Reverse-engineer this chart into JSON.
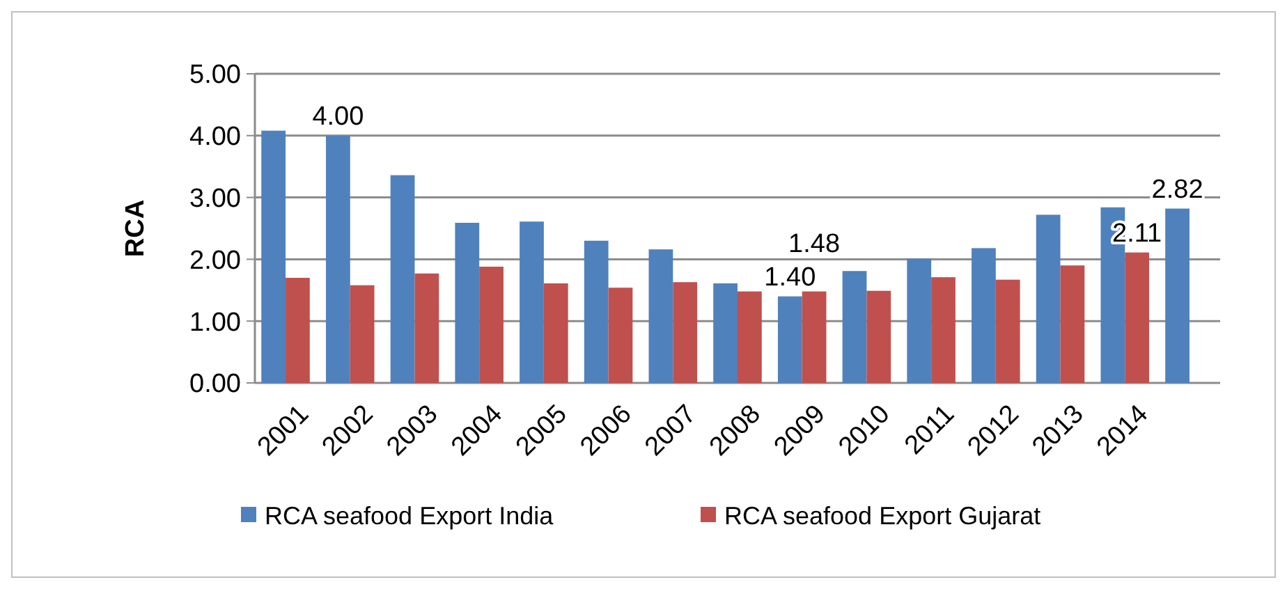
{
  "chart_data": {
    "type": "bar",
    "ylabel": "RCA",
    "categories": [
      "2001",
      "2002",
      "2003",
      "2004",
      "2005",
      "2006",
      "2007",
      "2008",
      "2009",
      "2010",
      "2011",
      "2012",
      "2013",
      "2014",
      null
    ],
    "series": [
      {
        "name": "RCA seafood Export India",
        "color": "#4f81bd",
        "values": [
          4.08,
          4.0,
          3.36,
          2.59,
          2.61,
          2.3,
          2.16,
          1.61,
          1.4,
          1.81,
          2.01,
          2.18,
          2.72,
          2.84,
          2.82
        ],
        "value_labels": [
          null,
          "4.00",
          null,
          null,
          null,
          null,
          null,
          null,
          "1.40",
          null,
          null,
          null,
          null,
          null,
          "2.82"
        ]
      },
      {
        "name": "RCA seafood Export Gujarat",
        "color": "#c0504d",
        "values": [
          1.7,
          1.58,
          1.77,
          1.88,
          1.61,
          1.54,
          1.63,
          1.48,
          1.48,
          1.49,
          1.71,
          1.67,
          1.9,
          2.11,
          null
        ],
        "value_labels": [
          null,
          null,
          null,
          null,
          null,
          null,
          null,
          null,
          "1.48",
          null,
          null,
          null,
          null,
          "2.11",
          null
        ]
      }
    ],
    "ylim": [
      0,
      5
    ],
    "yticks": [
      {
        "value": 0,
        "label": "0.00"
      },
      {
        "value": 1,
        "label": "1.00"
      },
      {
        "value": 2,
        "label": "2.00"
      },
      {
        "value": 3,
        "label": "3.00"
      },
      {
        "value": 4,
        "label": "4.00"
      },
      {
        "value": 5,
        "label": "5.00"
      }
    ],
    "grid": "y",
    "legend": "bottom"
  }
}
